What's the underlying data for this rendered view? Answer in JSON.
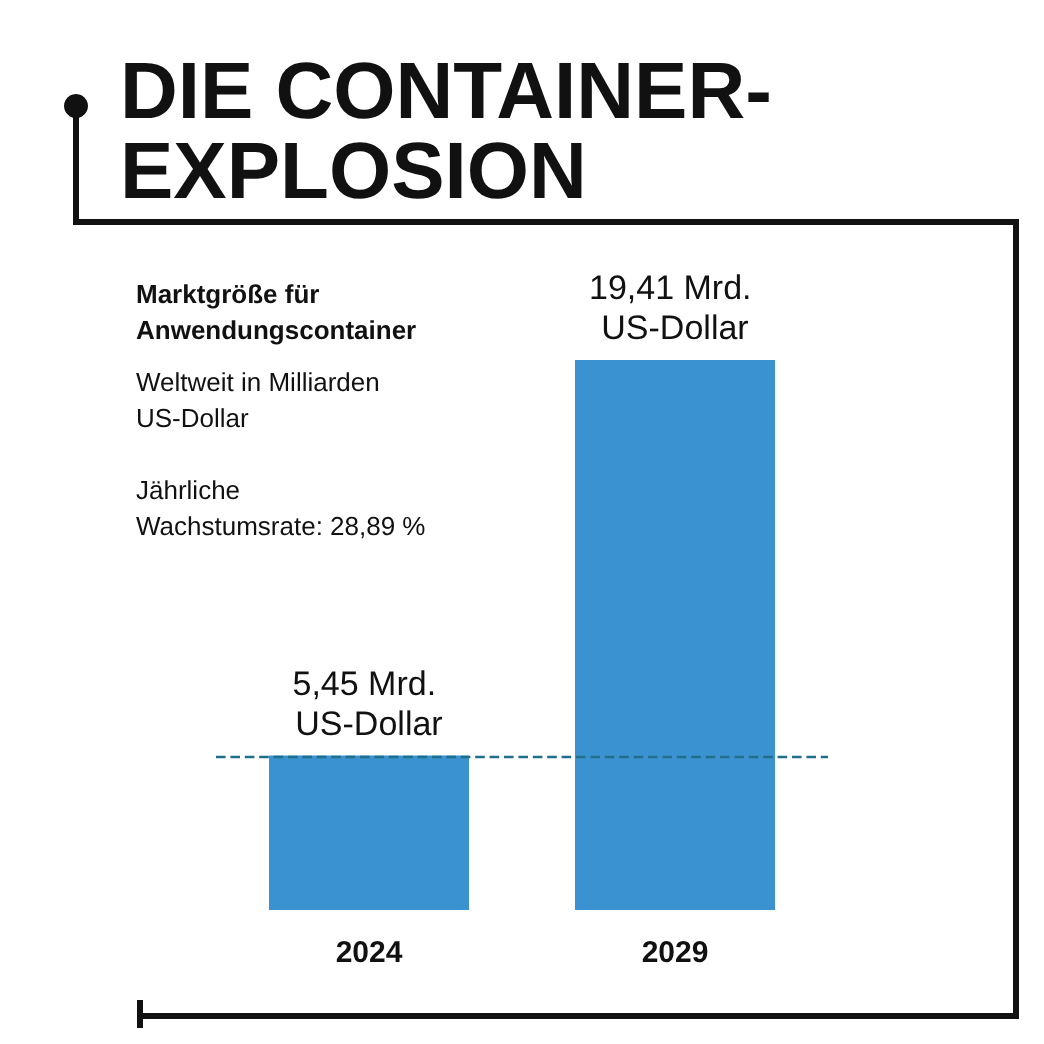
{
  "chart_data": {
    "type": "bar",
    "title": "DIE CONTAINER-EXPLOSION",
    "subtitle": "Marktgröße für Anwendungscontainer",
    "annotations": [
      "Weltweit in Milliarden US-Dollar",
      "Jährliche Wachstumsrate: 28,89 %"
    ],
    "categories": [
      "2024",
      "2029"
    ],
    "values": [
      5.45,
      19.41
    ],
    "value_labels": [
      "5,45 Mrd. US-Dollar",
      "19,41 Mrd. US-Dollar"
    ],
    "color": "#3a93d0",
    "ref_lines": [
      {
        "axis": "y",
        "value": 5.45,
        "color": "#1f6f8b",
        "line_style": "dashed"
      }
    ]
  }
}
